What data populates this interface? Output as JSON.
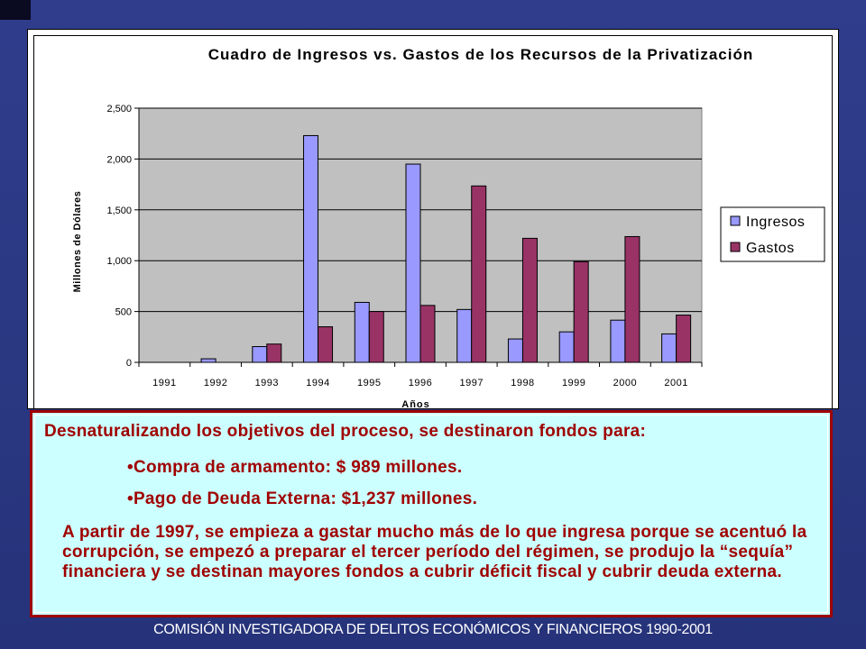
{
  "chart_data": {
    "type": "bar",
    "title": "Cuadro de Ingresos vs. Gastos de los Recursos de la Privatización",
    "xlabel": "Años",
    "ylabel": "Millones de Dólares",
    "categories": [
      "1991",
      "1992",
      "1993",
      "1994",
      "1995",
      "1996",
      "1997",
      "1998",
      "1999",
      "2000",
      "2001"
    ],
    "series": [
      {
        "name": "Ingresos",
        "color": "#9999ff",
        "values": [
          0,
          35,
          155,
          2230,
          590,
          1950,
          520,
          230,
          300,
          415,
          280
        ]
      },
      {
        "name": "Gastos",
        "color": "#993366",
        "values": [
          0,
          0,
          180,
          350,
          500,
          560,
          1735,
          1220,
          990,
          1237,
          465
        ]
      }
    ],
    "ylim": [
      0,
      2500
    ],
    "yticks": [
      0,
      500,
      1000,
      1500,
      2000,
      2500
    ],
    "ytick_labels": [
      "0",
      "500",
      "1,000",
      "1,500",
      "2,000",
      "2,500"
    ],
    "grid": true,
    "plot_background": "#c0c0c0",
    "legend": "right"
  },
  "text": {
    "intro": "Desnaturalizando los objetivos del proceso, se destinaron fondos para:",
    "bullet1": "•Compra de armamento: $ 989 millones.",
    "bullet2": "•Pago de Deuda Externa: $1,237 millones.",
    "paragraph": "A partir de 1997, se empieza a gastar mucho más de lo que ingresa porque se acentuó la corrupción, se empezó a preparar el tercer período del régimen, se produjo la “sequía” financiera y se destinan mayores fondos a cubrir déficit fiscal y cubrir deuda externa."
  },
  "footer": "COMISIÓN INVESTIGADORA DE DELITOS ECONÓMICOS Y FINANCIEROS  1990-2001",
  "colors": {
    "background": "#2f3d8c",
    "textbox_bg": "#ccffff",
    "accent_red": "#a00000"
  }
}
